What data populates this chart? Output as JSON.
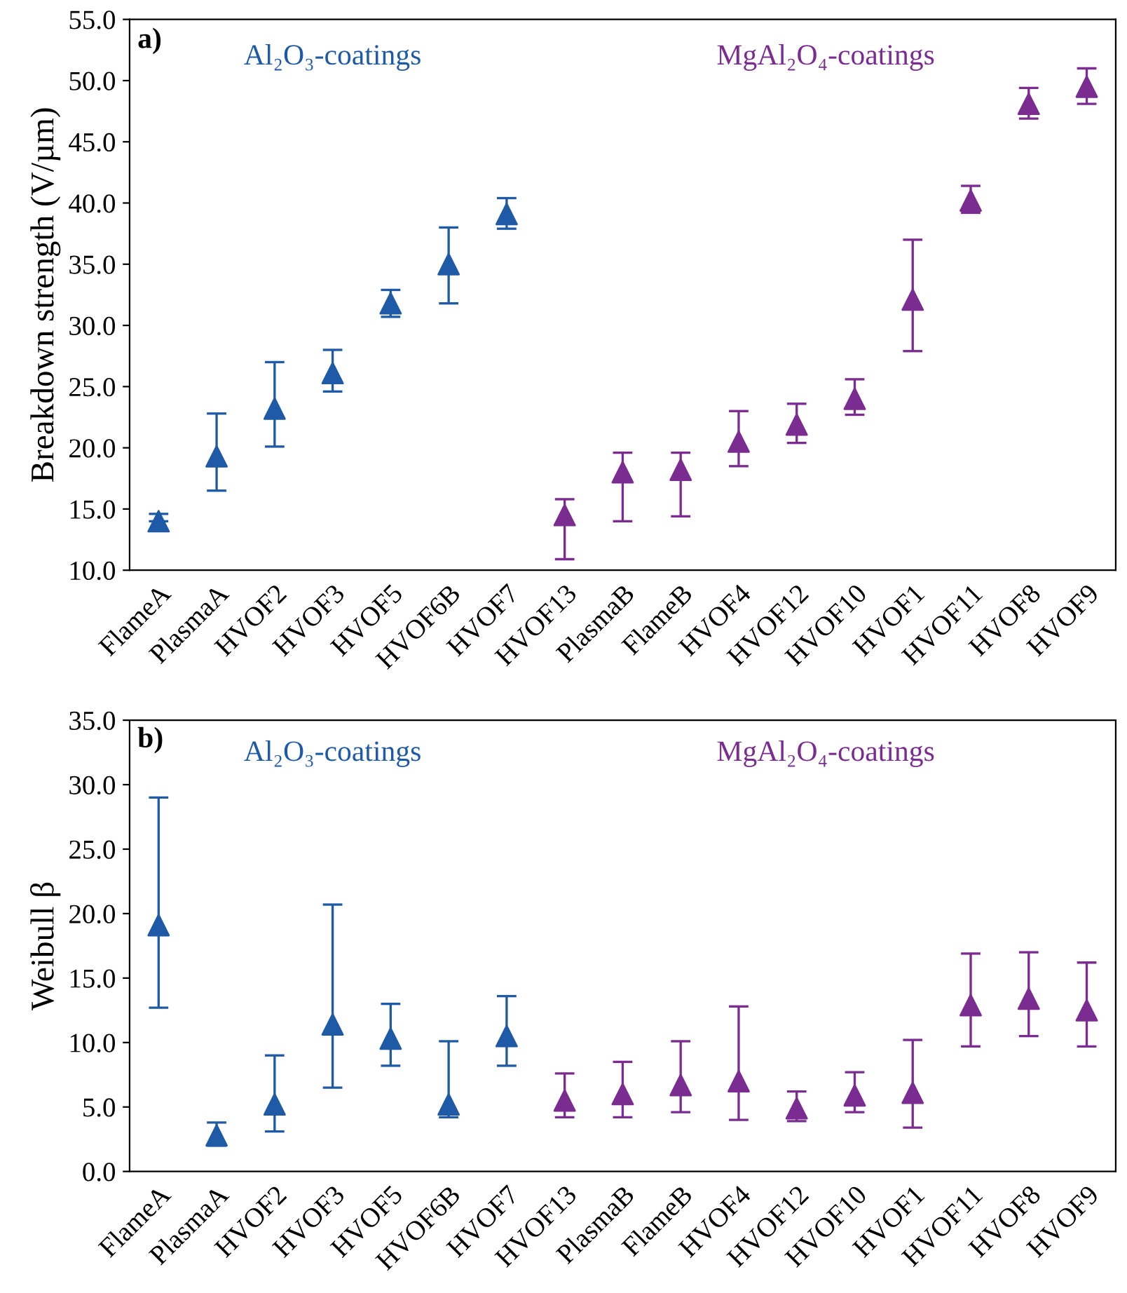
{
  "chart_data": [
    {
      "type": "scatter",
      "ylabel": "Breakdown strength (V/µm)",
      "annotations": [
        "a)"
      ],
      "marker": "triangle",
      "grid": false,
      "legend": false,
      "ylim": [
        10,
        55
      ],
      "yticks": [
        {
          "value": 10,
          "label": "10.0"
        },
        {
          "value": 15,
          "label": "15.0"
        },
        {
          "value": 20,
          "label": "20.0"
        },
        {
          "value": 25,
          "label": "25.0"
        },
        {
          "value": 30,
          "label": "30.0"
        },
        {
          "value": 35,
          "label": "35.0"
        },
        {
          "value": 40,
          "label": "40.0"
        },
        {
          "value": 45,
          "label": "45.0"
        },
        {
          "value": 50,
          "label": "50.0"
        },
        {
          "value": 55,
          "label": "55.0"
        }
      ],
      "categories": [
        "FlameA",
        "PlasmaA",
        "HVOF2",
        "HVOF3",
        "HVOF5",
        "HVOF6B",
        "HVOF7",
        "HVOF13",
        "PlasmaB",
        "FlameB",
        "HVOF4",
        "HVOF12",
        "HVOF10",
        "HVOF1",
        "HVOF11",
        "HVOF8",
        "HVOF9"
      ],
      "series": [
        {
          "name": "Al₂O₃-coatings",
          "color": "#1f5aa6",
          "values": [
            14.0,
            19.3,
            23.2,
            26.1,
            31.8,
            35.0,
            39.1,
            null,
            null,
            null,
            null,
            null,
            null,
            null,
            null,
            null,
            null
          ],
          "errors": [
            [
              14.0,
              14.6
            ],
            [
              16.5,
              22.8
            ],
            [
              20.1,
              27.0
            ],
            [
              24.6,
              28.0
            ],
            [
              30.7,
              32.9
            ],
            [
              31.8,
              38.0
            ],
            [
              37.9,
              40.4
            ],
            null,
            null,
            null,
            null,
            null,
            null,
            null,
            null,
            null,
            null
          ]
        },
        {
          "name": "MgAl₂O₄-coatings",
          "color": "#7b2c91",
          "values": [
            null,
            null,
            null,
            null,
            null,
            null,
            null,
            14.5,
            18.0,
            18.2,
            20.5,
            21.9,
            24.0,
            32.1,
            40.2,
            48.1,
            49.5
          ],
          "errors": [
            null,
            null,
            null,
            null,
            null,
            null,
            null,
            [
              10.9,
              15.8
            ],
            [
              14.0,
              19.6
            ],
            [
              14.4,
              19.6
            ],
            [
              18.5,
              23.0
            ],
            [
              20.4,
              23.6
            ],
            [
              22.7,
              25.6
            ],
            [
              27.9,
              37.0
            ],
            [
              39.2,
              41.4
            ],
            [
              46.9,
              49.4
            ],
            [
              48.1,
              51.0
            ]
          ]
        }
      ]
    },
    {
      "type": "scatter",
      "ylabel": "Weibull β",
      "annotations": [
        "b)"
      ],
      "marker": "triangle",
      "grid": false,
      "legend": false,
      "ylim": [
        0,
        35
      ],
      "yticks": [
        {
          "value": 0,
          "label": "0.0"
        },
        {
          "value": 5,
          "label": "5.0"
        },
        {
          "value": 10,
          "label": "10.0"
        },
        {
          "value": 15,
          "label": "15.0"
        },
        {
          "value": 20,
          "label": "20.0"
        },
        {
          "value": 25,
          "label": "25.0"
        },
        {
          "value": 30,
          "label": "30.0"
        },
        {
          "value": 35,
          "label": "35.0"
        }
      ],
      "categories": [
        "FlameA",
        "PlasmaA",
        "HVOF2",
        "HVOF3",
        "HVOF5",
        "HVOF6B",
        "HVOF7",
        "HVOF13",
        "PlasmaB",
        "FlameB",
        "HVOF4",
        "HVOF12",
        "HVOF10",
        "HVOF1",
        "HVOF11",
        "HVOF8",
        "HVOF9"
      ],
      "series": [
        {
          "name": "Al₂O₃-coatings",
          "color": "#1f5aa6",
          "values": [
            19.1,
            2.8,
            5.2,
            11.4,
            10.3,
            5.2,
            10.5,
            null,
            null,
            null,
            null,
            null,
            null,
            null,
            null,
            null,
            null
          ],
          "errors": [
            [
              12.7,
              29.0
            ],
            [
              2.0,
              3.8
            ],
            [
              3.1,
              9.0
            ],
            [
              6.5,
              20.7
            ],
            [
              8.2,
              13.0
            ],
            [
              4.2,
              10.1
            ],
            [
              8.2,
              13.6
            ],
            null,
            null,
            null,
            null,
            null,
            null,
            null,
            null,
            null,
            null
          ]
        },
        {
          "name": "MgAl₂O₄-coatings",
          "color": "#7b2c91",
          "values": [
            null,
            null,
            null,
            null,
            null,
            null,
            null,
            5.5,
            6.0,
            6.7,
            7.0,
            4.9,
            5.9,
            6.1,
            12.9,
            13.4,
            12.5
          ],
          "errors": [
            null,
            null,
            null,
            null,
            null,
            null,
            null,
            [
              4.2,
              7.6
            ],
            [
              4.2,
              8.5
            ],
            [
              4.6,
              10.1
            ],
            [
              4.0,
              12.8
            ],
            [
              3.9,
              6.2
            ],
            [
              4.6,
              7.7
            ],
            [
              3.4,
              10.2
            ],
            [
              9.7,
              16.9
            ],
            [
              10.5,
              17.0
            ],
            [
              9.7,
              16.2
            ]
          ]
        }
      ]
    }
  ]
}
